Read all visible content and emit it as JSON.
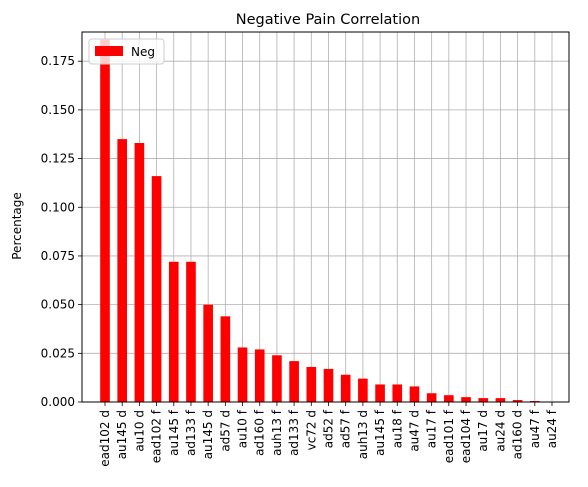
{
  "chart_data": {
    "type": "bar",
    "title": "Negative Pain Correlation",
    "xlabel": "",
    "ylabel": "Percentage",
    "ylim": [
      0,
      0.19
    ],
    "yticks": [
      "0.000",
      "0.025",
      "0.050",
      "0.075",
      "0.100",
      "0.125",
      "0.150",
      "0.175"
    ],
    "grid": true,
    "legend_position": "top-left",
    "series": [
      {
        "name": "Neg",
        "color": "#ff0000",
        "values": [
          0.186,
          0.135,
          0.133,
          0.116,
          0.072,
          0.072,
          0.05,
          0.044,
          0.028,
          0.027,
          0.024,
          0.021,
          0.018,
          0.017,
          0.014,
          0.012,
          0.009,
          0.009,
          0.008,
          0.0045,
          0.0035,
          0.0025,
          0.002,
          0.002,
          0.001,
          0.0005,
          0.0002
        ]
      }
    ],
    "categories": [
      "ead102 d",
      "au145 d",
      "au10 d",
      "ead102 f",
      "au145 f",
      "ad133 f",
      "au145 d",
      "ad57 d",
      "au10 f",
      "ad160 f",
      "auh13 f",
      "ad133 f",
      "vc72 d",
      "ad52 f",
      "ad57 f",
      "auh13 d",
      "au145 f",
      "au18 f",
      "au47 d",
      "au17 f",
      "ead101 f",
      "ead104 f",
      "au17 d",
      "au24 d",
      "ad160 d",
      "au47 f",
      "au24 f"
    ]
  }
}
